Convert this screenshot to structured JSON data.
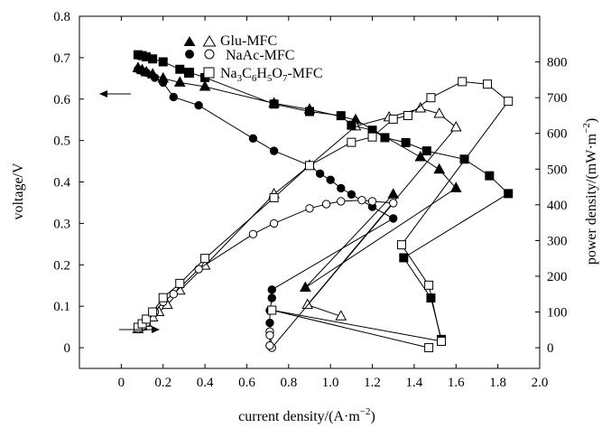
{
  "chart_data": {
    "type": "line",
    "xlabel": "current density/(A·m",
    "xlabel_sup": "−2",
    "xlabel_end": ")",
    "ylabel_left": "voltage/V",
    "ylabel_right": "power density/(mW·m",
    "ylabel_right_sup": "−2",
    "ylabel_right_end": ")",
    "xlim": [
      -0.2,
      2.0
    ],
    "ylim_left": [
      -0.05,
      0.8
    ],
    "ylim_right": [
      -58,
      928
    ],
    "x_ticks": [
      "0",
      "0.2",
      "0.4",
      "0.6",
      "0.8",
      "1.0",
      "1.2",
      "1.4",
      "1.6",
      "1.8",
      "2.0"
    ],
    "y_ticks_left": [
      "0",
      "0.1",
      "0.2",
      "0.3",
      "0.4",
      "0.5",
      "0.6",
      "0.7",
      "0.8"
    ],
    "y_ticks_right": [
      "0",
      "100",
      "200",
      "300",
      "400",
      "500",
      "600",
      "700",
      "800"
    ],
    "legend": {
      "position": "top-center",
      "entries": [
        {
          "label": "Glu-MFC",
          "markers": [
            "triangle-filled",
            "triangle-open"
          ]
        },
        {
          "label": "NaAc-MFC",
          "markers": [
            "circle-filled",
            "circle-open"
          ]
        },
        {
          "label_parts": [
            "Na",
            "3",
            "C",
            "6",
            "H",
            "5",
            "O",
            "7",
            "-MFC"
          ],
          "markers": [
            "square-filled",
            "square-open"
          ]
        }
      ]
    },
    "annotations": [
      {
        "text": "←",
        "meaning": "voltage curves use left axis",
        "x": 0.15,
        "y_left": 0.62
      },
      {
        "text": "→",
        "meaning": "power curves use right axis",
        "x": 0.05,
        "y_left": 0.05
      }
    ],
    "series": [
      {
        "name": "Glu-MFC voltage",
        "axis": "left",
        "marker": "triangle",
        "filled": true,
        "points": [
          [
            0.08,
            0.675
          ],
          [
            0.1,
            0.67
          ],
          [
            0.12,
            0.665
          ],
          [
            0.15,
            0.66
          ],
          [
            0.2,
            0.65
          ],
          [
            0.28,
            0.64
          ],
          [
            0.4,
            0.63
          ],
          [
            0.73,
            0.59
          ],
          [
            0.9,
            0.575
          ],
          [
            1.12,
            0.55
          ],
          [
            1.43,
            0.46
          ],
          [
            1.52,
            0.43
          ],
          [
            1.6,
            0.385
          ],
          [
            0.88,
            0.145
          ],
          [
            1.3,
            0.37
          ]
        ]
      },
      {
        "name": "Glu-MFC power",
        "axis": "right",
        "marker": "triangle",
        "filled": false,
        "points": [
          [
            0.08,
            52
          ],
          [
            0.1,
            60
          ],
          [
            0.12,
            70
          ],
          [
            0.15,
            85
          ],
          [
            0.18,
            100
          ],
          [
            0.22,
            120
          ],
          [
            0.28,
            160
          ],
          [
            0.4,
            230
          ],
          [
            0.73,
            430
          ],
          [
            0.9,
            510
          ],
          [
            1.12,
            620
          ],
          [
            1.28,
            645
          ],
          [
            1.43,
            670
          ],
          [
            1.52,
            655
          ],
          [
            1.6,
            617
          ],
          [
            0.89,
            120
          ],
          [
            1.05,
            88
          ]
        ]
      },
      {
        "name": "NaAc-MFC voltage",
        "axis": "left",
        "marker": "circle",
        "filled": true,
        "points": [
          [
            0.08,
            0.672
          ],
          [
            0.1,
            0.668
          ],
          [
            0.12,
            0.664
          ],
          [
            0.16,
            0.652
          ],
          [
            0.2,
            0.64
          ],
          [
            0.25,
            0.605
          ],
          [
            0.37,
            0.585
          ],
          [
            0.63,
            0.505
          ],
          [
            0.73,
            0.475
          ],
          [
            0.9,
            0.44
          ],
          [
            0.95,
            0.42
          ],
          [
            1.0,
            0.405
          ],
          [
            1.05,
            0.385
          ],
          [
            1.1,
            0.37
          ],
          [
            1.2,
            0.34
          ],
          [
            1.3,
            0.312
          ],
          [
            0.72,
            0.14
          ],
          [
            0.72,
            0.12
          ],
          [
            0.71,
            0.09
          ],
          [
            0.71,
            0.06
          ],
          [
            0.71,
            0.005
          ]
        ]
      },
      {
        "name": "NaAc-MFC power",
        "axis": "right",
        "marker": "circle",
        "filled": false,
        "points": [
          [
            0.08,
            52
          ],
          [
            0.1,
            58
          ],
          [
            0.12,
            70
          ],
          [
            0.16,
            100
          ],
          [
            0.2,
            128
          ],
          [
            0.25,
            150
          ],
          [
            0.37,
            220
          ],
          [
            0.63,
            318
          ],
          [
            0.73,
            348
          ],
          [
            0.9,
            390
          ],
          [
            0.98,
            402
          ],
          [
            1.05,
            410
          ],
          [
            1.15,
            413
          ],
          [
            1.2,
            410
          ],
          [
            1.3,
            405
          ],
          [
            0.72,
            0.0
          ],
          [
            0.71,
            45
          ],
          [
            0.71,
            35
          ],
          [
            0.71,
            6
          ]
        ]
      },
      {
        "name": "Na3C6H5O7-MFC voltage",
        "axis": "left",
        "marker": "square",
        "filled": true,
        "points": [
          [
            0.08,
            0.707
          ],
          [
            0.1,
            0.705
          ],
          [
            0.12,
            0.702
          ],
          [
            0.15,
            0.697
          ],
          [
            0.2,
            0.69
          ],
          [
            0.28,
            0.672
          ],
          [
            0.4,
            0.652
          ],
          [
            0.73,
            0.588
          ],
          [
            0.9,
            0.57
          ],
          [
            1.05,
            0.56
          ],
          [
            1.1,
            0.537
          ],
          [
            1.2,
            0.525
          ],
          [
            1.26,
            0.507
          ],
          [
            1.36,
            0.495
          ],
          [
            1.46,
            0.475
          ],
          [
            1.64,
            0.455
          ],
          [
            1.76,
            0.415
          ],
          [
            1.85,
            0.372
          ],
          [
            1.35,
            0.217
          ],
          [
            1.48,
            0.12
          ],
          [
            1.53,
            0.02
          ]
        ]
      },
      {
        "name": "Na3C6H5O7-MFC power",
        "axis": "right",
        "marker": "square",
        "filled": false,
        "points": [
          [
            0.08,
            57
          ],
          [
            0.1,
            67
          ],
          [
            0.12,
            80
          ],
          [
            0.15,
            100
          ],
          [
            0.2,
            140
          ],
          [
            0.28,
            180
          ],
          [
            0.4,
            250
          ],
          [
            0.73,
            420
          ],
          [
            0.9,
            510
          ],
          [
            1.1,
            575
          ],
          [
            1.2,
            590
          ],
          [
            1.3,
            640
          ],
          [
            1.37,
            650
          ],
          [
            1.48,
            700
          ],
          [
            1.63,
            745
          ],
          [
            1.75,
            738
          ],
          [
            1.85,
            690
          ],
          [
            1.34,
            288
          ],
          [
            1.47,
            175
          ],
          [
            1.53,
            18
          ],
          [
            0.72,
            105
          ],
          [
            1.47,
            0.0
          ]
        ]
      }
    ]
  }
}
